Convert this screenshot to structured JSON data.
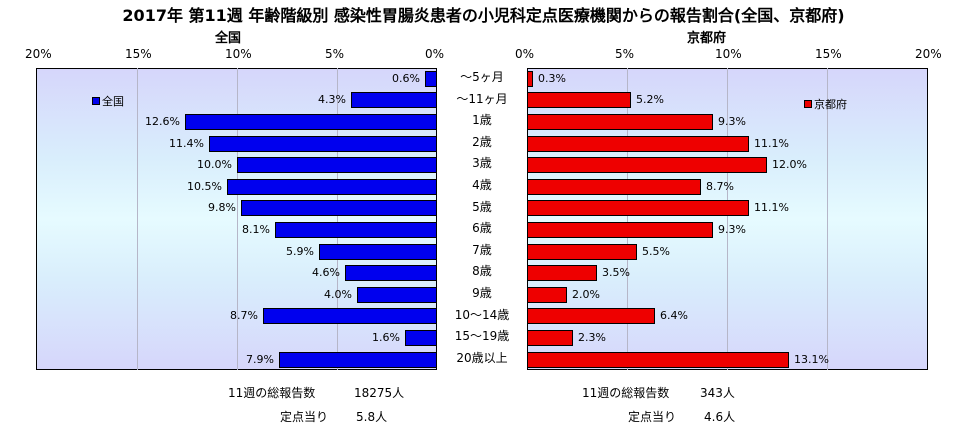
{
  "chart_data": {
    "type": "bar",
    "title": "2017年 第11週 年齢階級別 感染性胃腸炎患者の小児科定点医療機関からの報告割合(全国、京都府)",
    "categories": [
      "～5ヶ月",
      "～11ヶ月",
      "1歳",
      "2歳",
      "3歳",
      "4歳",
      "5歳",
      "6歳",
      "7歳",
      "8歳",
      "9歳",
      "10～14歳",
      "15～19歳",
      "20歳以上"
    ],
    "series": [
      {
        "name": "全国",
        "panel_title": "全国",
        "color": "#0000ee",
        "values": [
          0.6,
          4.3,
          12.6,
          11.4,
          10.0,
          10.5,
          9.8,
          8.1,
          5.9,
          4.6,
          4.0,
          8.7,
          1.6,
          7.9
        ],
        "labels": [
          "0.6%",
          "4.3%",
          "12.6%",
          "11.4%",
          "10.0%",
          "10.5%",
          "9.8%",
          "8.1%",
          "5.9%",
          "4.6%",
          "4.0%",
          "8.7%",
          "1.6%",
          "7.9%"
        ]
      },
      {
        "name": "京都府",
        "panel_title": "京都府",
        "color": "#ee0000",
        "values": [
          0.3,
          5.2,
          9.3,
          11.1,
          12.0,
          8.7,
          11.1,
          9.3,
          5.5,
          3.5,
          2.0,
          6.4,
          2.3,
          13.1
        ],
        "labels": [
          "0.3%",
          "5.2%",
          "9.3%",
          "11.1%",
          "12.0%",
          "8.7%",
          "11.1%",
          "9.3%",
          "5.5%",
          "3.5%",
          "2.0%",
          "6.4%",
          "2.3%",
          "13.1%"
        ]
      }
    ],
    "xlim": [
      0,
      20
    ],
    "ticks_left": [
      "20%",
      "15%",
      "10%",
      "5%",
      "0%"
    ],
    "ticks_right": [
      "0%",
      "5%",
      "10%",
      "15%",
      "20%"
    ],
    "grid": true,
    "legend_left": "top-left",
    "legend_right": "top-right"
  },
  "footer": {
    "national": {
      "total_label": "11週の総報告数",
      "total_value": "18275人",
      "per_label": "定点当り",
      "per_value": "5.8人"
    },
    "kyoto": {
      "total_label": "11週の総報告数",
      "total_value": "343人",
      "per_label": "定点当り",
      "per_value": "4.6人"
    }
  }
}
